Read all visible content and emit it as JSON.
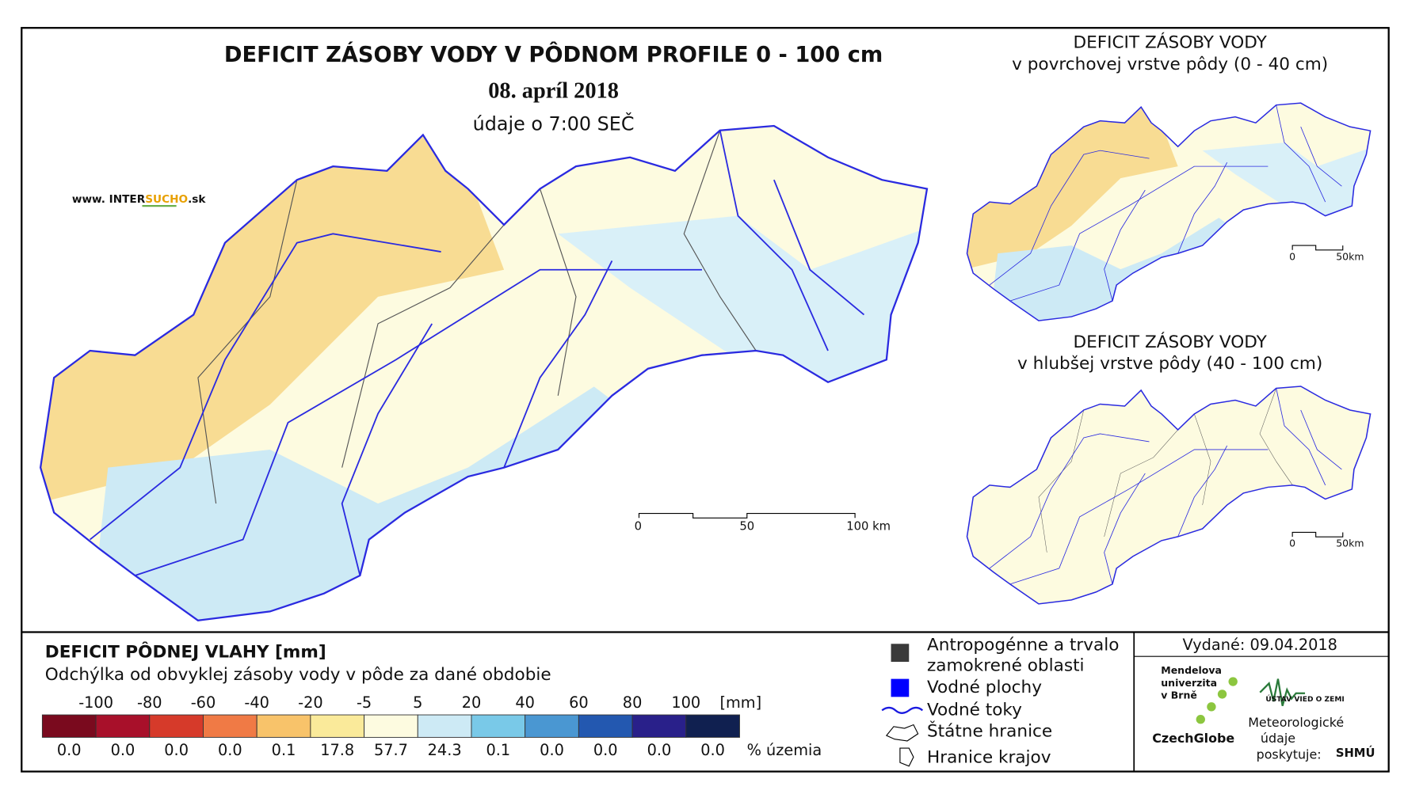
{
  "header": {
    "title": "DEFICIT ZÁSOBY VODY V PÔDNOM PROFILE 0 - 100 cm",
    "date": "08. apríl 2018",
    "time": "údaje o 7:00 SEČ",
    "site_prefix": "www. INTER",
    "site_brand": "SUCHO",
    "site_suffix": ".sk"
  },
  "main_scale": {
    "zero": "0",
    "mid": "50",
    "end": "100 km"
  },
  "surface_map": {
    "title": "DEFICIT ZÁSOBY VODY",
    "subtitle": "v povrchovej vrstve pôdy (0 - 40 cm)",
    "scale_zero": "0",
    "scale_end": "50km"
  },
  "deep_map": {
    "title": "DEFICIT ZÁSOBY VODY",
    "subtitle": "v hlubšej vrstve pôdy (40 - 100 cm)",
    "scale_zero": "0",
    "scale_end": "50km"
  },
  "legend": {
    "title": "DEFICIT PÔDNEJ VLAHY [mm]",
    "subtitle": "Odchýlka od obvyklej zásoby vody v pôde za dané obdobie",
    "breaks": [
      -100,
      -80,
      -60,
      -40,
      -20,
      -5,
      5,
      20,
      40,
      60,
      80,
      100
    ],
    "unit": "[mm]",
    "colors": [
      "#7a0a1e",
      "#a8102a",
      "#d63a2a",
      "#f07a45",
      "#f8c36a",
      "#faea9a",
      "#fdfbe0",
      "#cdeaf5",
      "#79c9e8",
      "#4a97d2",
      "#2358b0",
      "#29208a",
      "#102050"
    ],
    "shares": [
      "0.0",
      "0.0",
      "0.0",
      "0.0",
      "0.1",
      "17.8",
      "57.7",
      "24.3",
      "0.1",
      "0.0",
      "0.0",
      "0.0",
      "0.0"
    ],
    "share_unit": "% územia"
  },
  "symbols": {
    "anthropogenic_1": "Antropogénne a trvalo",
    "anthropogenic_2": "zamokrené oblasti",
    "water_bodies": "Vodné plochy",
    "streams": "Vodné toky",
    "state_border": "Štátne hranice",
    "regions": "Hranice krajov"
  },
  "credits": {
    "issued": "Vydané: 09.04.2018",
    "mendel": [
      "Mendelova",
      "univerzita",
      "v Brně"
    ],
    "czechglobe": "CzechGlobe",
    "ustav": "ÚSTAV VIED O ZEMI",
    "meteo": [
      "Meteorologické",
      "údaje",
      "poskytuje:"
    ],
    "shmu": "SHMÚ"
  }
}
